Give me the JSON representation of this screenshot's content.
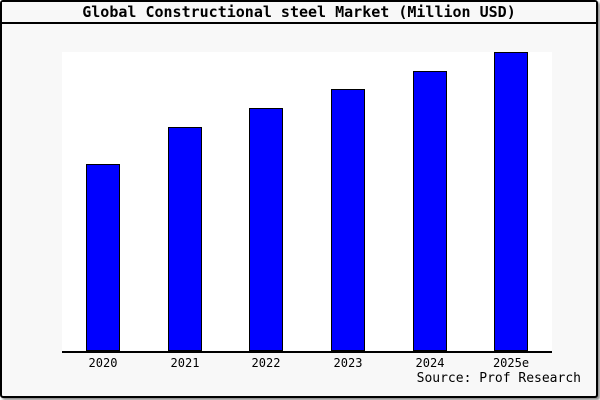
{
  "frame": {
    "title": "Global Constructional steel Market (Million USD)",
    "source_note": "Source: Prof Research"
  },
  "colors": {
    "background": "#f8f8f8",
    "plot_background": "#ffffff",
    "bar_fill": "#0000ff",
    "bar_border": "#000000",
    "axis": "#000000",
    "frame_border": "#000000",
    "text": "#000000"
  },
  "chart_data": {
    "type": "bar",
    "title": "Global Constructional steel Market (Million USD)",
    "categories": [
      "2020",
      "2021",
      "2022",
      "2023",
      "2024",
      "2025e"
    ],
    "values": [
      62.5,
      74.9,
      81.3,
      87.6,
      93.6,
      100
    ],
    "value_units": "relative % of tallest bar (no y-axis tick labels shown in chart)",
    "xlabel": "",
    "ylabel": "",
    "y_axis_labels_visible": false,
    "grid": false,
    "legend": "none",
    "bar_color": "#0000ff",
    "source_note": "Source: Prof Research"
  }
}
